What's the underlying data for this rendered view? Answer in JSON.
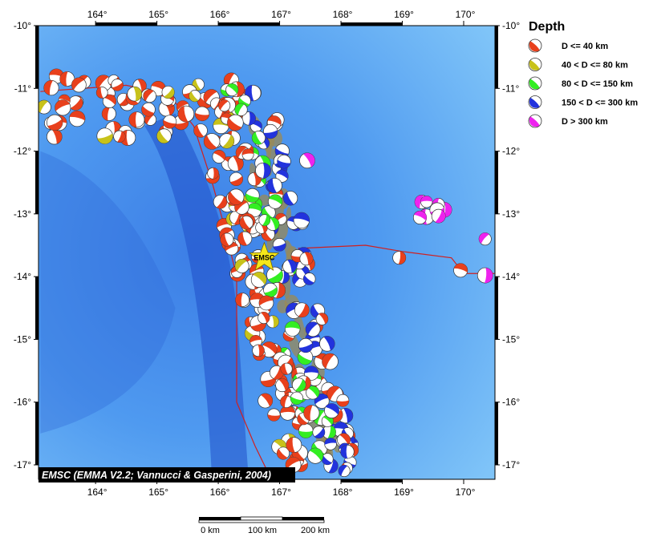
{
  "map": {
    "legend_title": "Depth",
    "legend": [
      {
        "label": "D <= 40 km",
        "color": "#e8401c"
      },
      {
        "label": "40 < D <= 80 km",
        "color": "#c8c21a"
      },
      {
        "label": "80 < D <= 150 km",
        "color": "#33ee22"
      },
      {
        "label": "150 < D <= 300 km",
        "color": "#2233dd"
      },
      {
        "label": "D > 300 km",
        "color": "#ee22ee"
      }
    ],
    "xlim": [
      163.07,
      170.51
    ],
    "ylim": [
      -17.23,
      -10
    ],
    "xticks": [
      {
        "value": 164,
        "label": "164°"
      },
      {
        "value": 165,
        "label": "165°"
      },
      {
        "value": 166,
        "label": "166°"
      },
      {
        "value": 167,
        "label": "167°"
      },
      {
        "value": 168,
        "label": "168°"
      },
      {
        "value": 169,
        "label": "169°"
      },
      {
        "value": 170,
        "label": "170°"
      }
    ],
    "yticks": [
      {
        "value": -10,
        "label": "-10°"
      },
      {
        "value": -11,
        "label": "-11°"
      },
      {
        "value": -12,
        "label": "-12°"
      },
      {
        "value": -13,
        "label": "-13°"
      },
      {
        "value": -14,
        "label": "-14°"
      },
      {
        "value": -15,
        "label": "-15°"
      },
      {
        "value": -16,
        "label": "-16°"
      },
      {
        "value": -17,
        "label": "-17°"
      }
    ],
    "epicenter": {
      "label": "EMSC",
      "lon": 166.75,
      "lat": -13.7
    },
    "attribution": "EMSC (EMMA V2.2; Vannucci & Gasperini, 2004)",
    "scale_bar": [
      "0 km",
      "100 km",
      "200 km"
    ]
  }
}
